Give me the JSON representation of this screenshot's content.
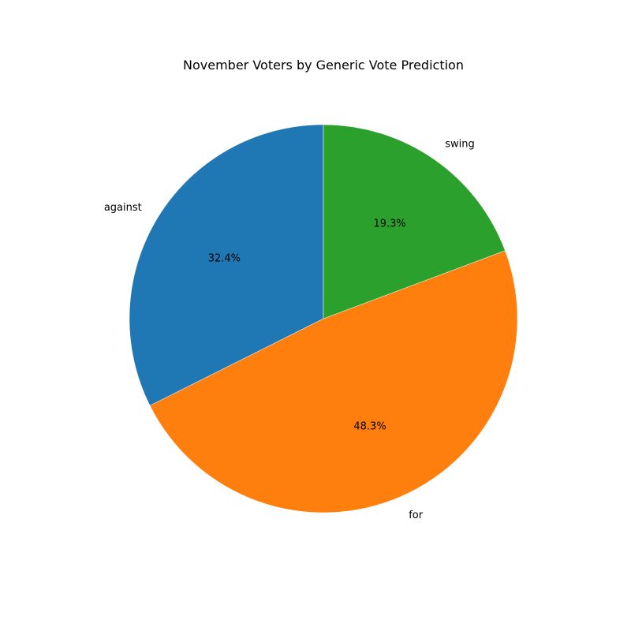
{
  "chart_data": {
    "type": "pie",
    "title": "November Voters by Generic Vote Prediction",
    "start_angle_deg": 90,
    "direction": "counterclockwise",
    "slices": [
      {
        "label": "against",
        "value": 32.4,
        "pct_label": "32.4%",
        "color": "#1f77b4"
      },
      {
        "label": "for",
        "value": 48.3,
        "pct_label": "48.3%",
        "color": "#ff7f0e"
      },
      {
        "label": "swing",
        "value": 19.3,
        "pct_label": "19.3%",
        "color": "#2ca02c"
      }
    ]
  }
}
